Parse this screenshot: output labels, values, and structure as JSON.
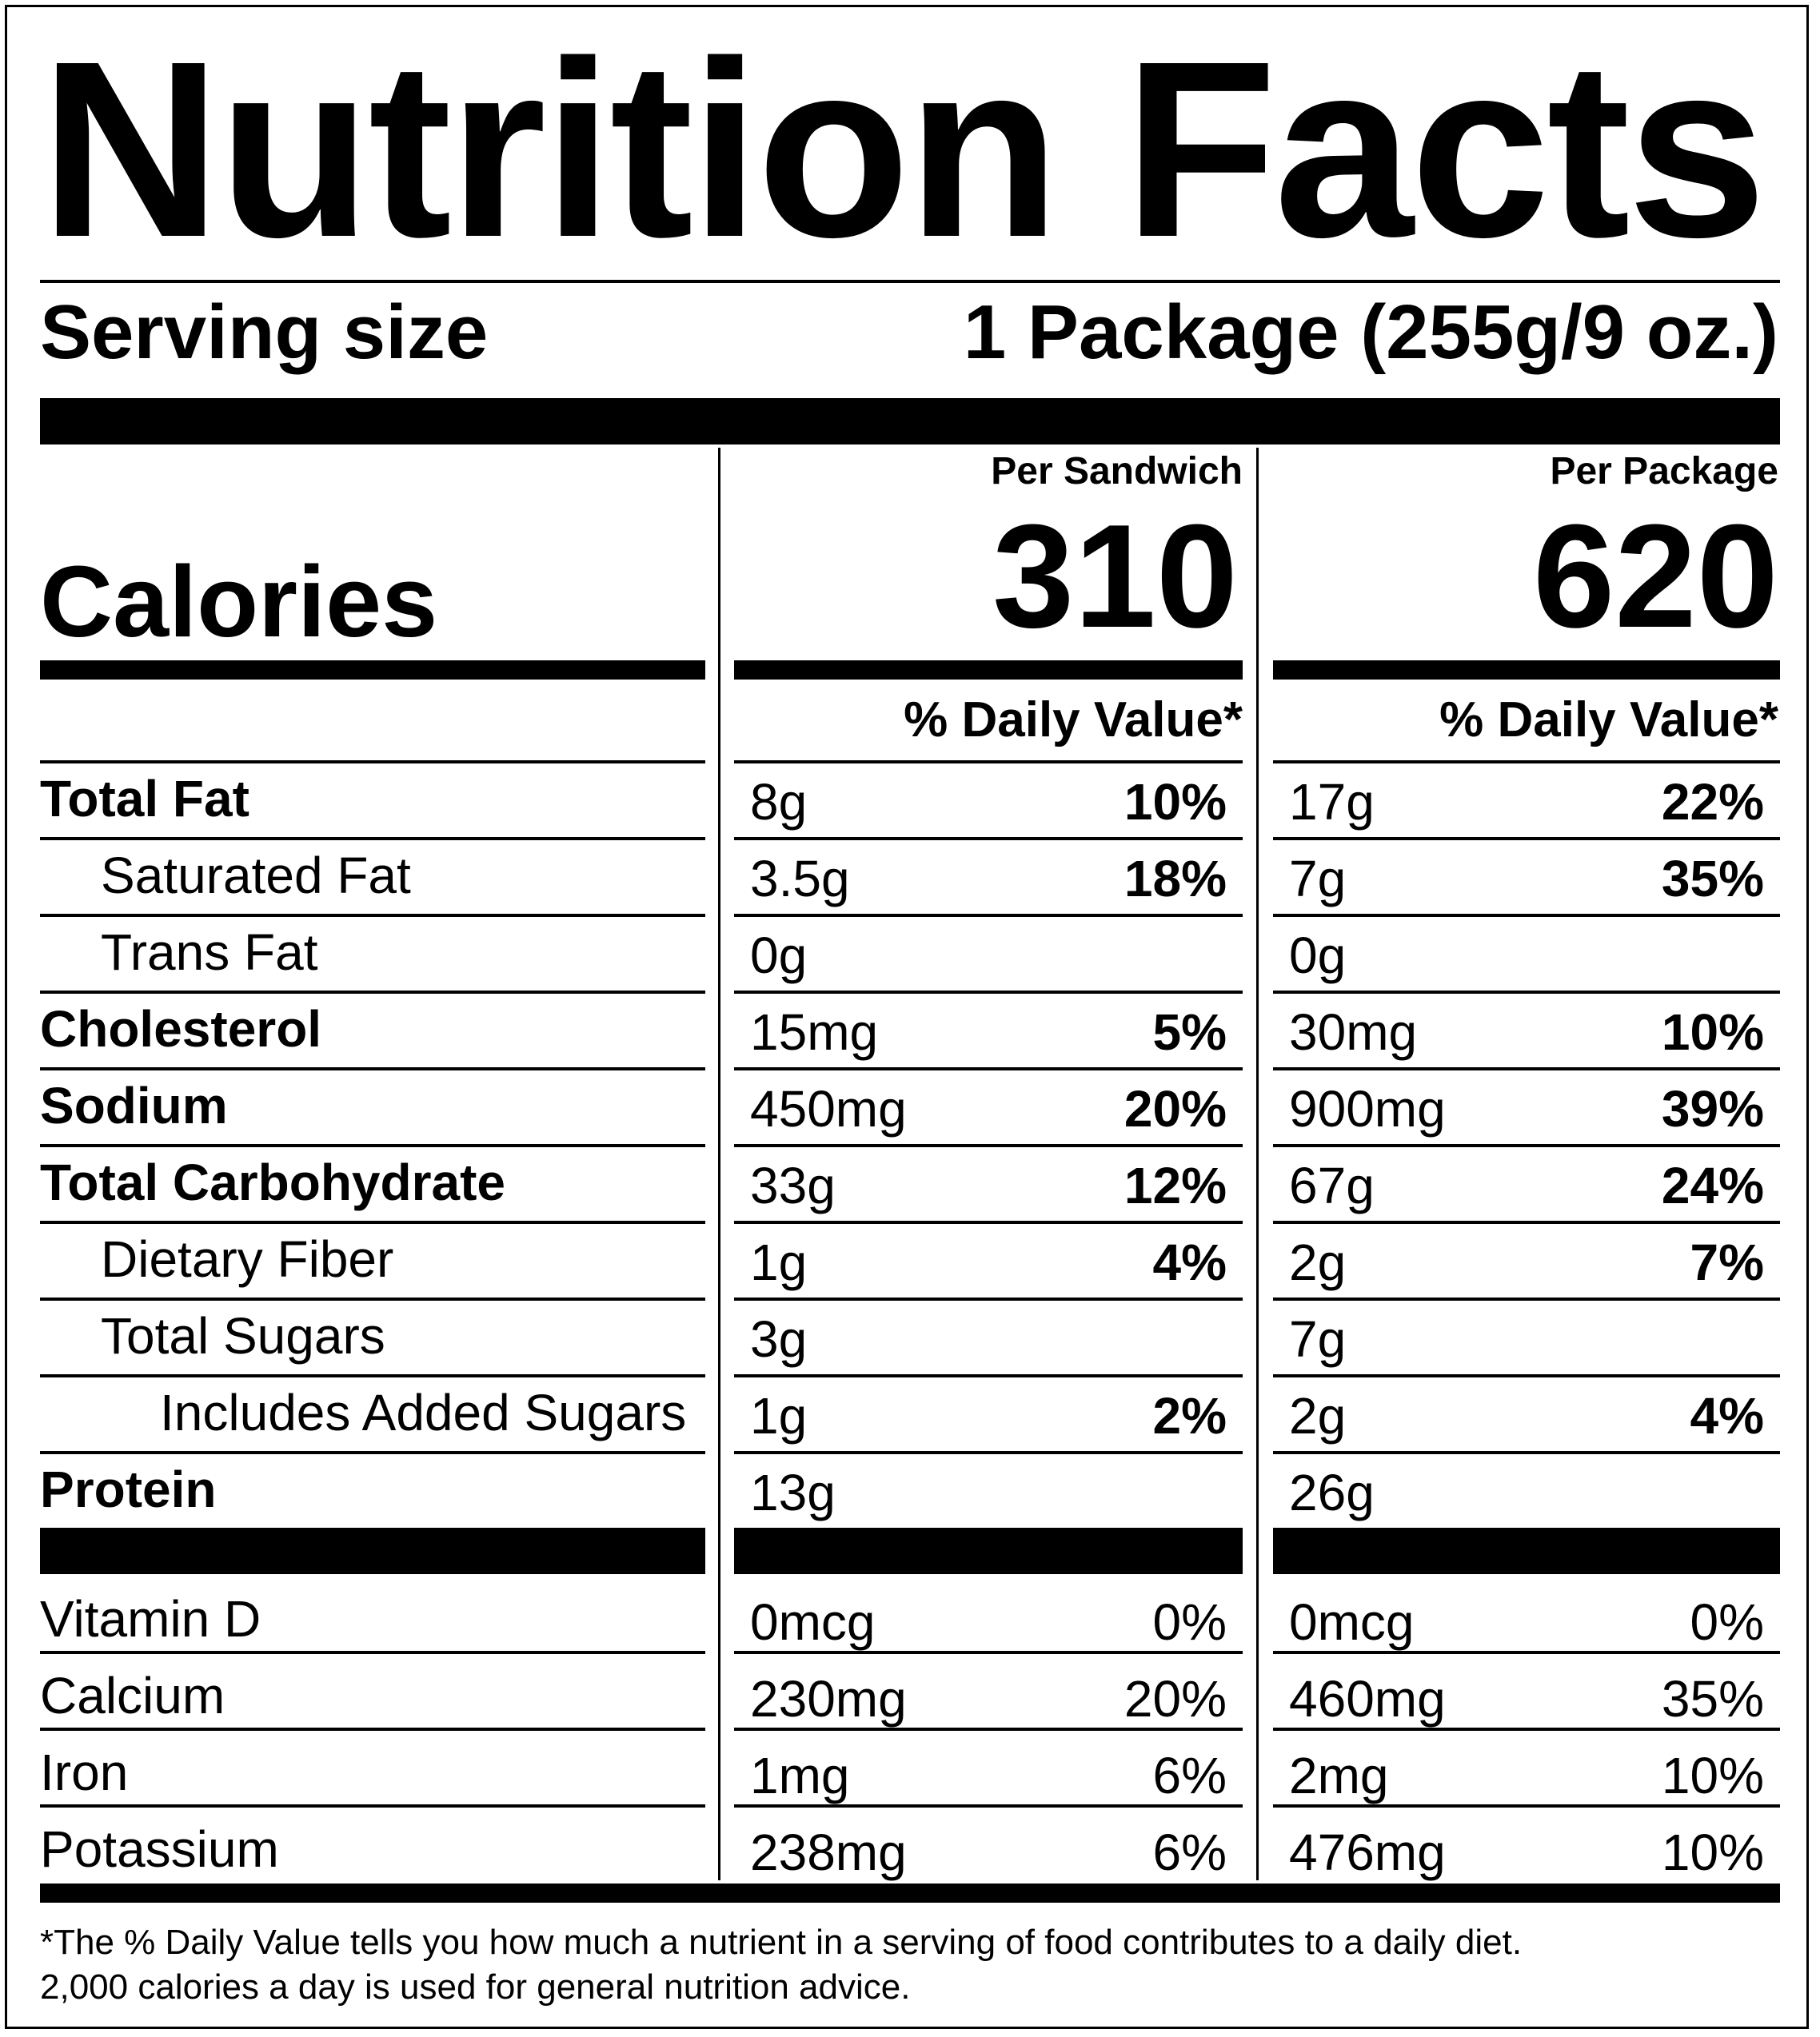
{
  "title": "Nutrition Facts",
  "serving": {
    "label": "Serving size",
    "value": "1 Package (255g/9 oz.)"
  },
  "calories": {
    "label": "Calories",
    "columns": [
      {
        "heading": "Per Sandwich",
        "value": "310",
        "dv_heading": "% Daily Value*"
      },
      {
        "heading": "Per Package",
        "value": "620",
        "dv_heading": "% Daily Value*"
      }
    ]
  },
  "nutrients": [
    {
      "label": "Total Fat",
      "bold": true,
      "indent": 0,
      "sandwich": {
        "amount": "8g",
        "dv": "10%"
      },
      "package": {
        "amount": "17g",
        "dv": "22%"
      }
    },
    {
      "label": "Saturated Fat",
      "bold": false,
      "indent": 1,
      "sandwich": {
        "amount": "3.5g",
        "dv": "18%"
      },
      "package": {
        "amount": "7g",
        "dv": "35%"
      }
    },
    {
      "label": "Trans Fat",
      "bold": false,
      "indent": 1,
      "sandwich": {
        "amount": "0g",
        "dv": ""
      },
      "package": {
        "amount": "0g",
        "dv": ""
      }
    },
    {
      "label": "Cholesterol",
      "bold": true,
      "indent": 0,
      "sandwich": {
        "amount": "15mg",
        "dv": "5%"
      },
      "package": {
        "amount": "30mg",
        "dv": "10%"
      }
    },
    {
      "label": "Sodium",
      "bold": true,
      "indent": 0,
      "sandwich": {
        "amount": "450mg",
        "dv": "20%"
      },
      "package": {
        "amount": "900mg",
        "dv": "39%"
      }
    },
    {
      "label": "Total Carbohydrate",
      "bold": true,
      "indent": 0,
      "sandwich": {
        "amount": "33g",
        "dv": "12%"
      },
      "package": {
        "amount": "67g",
        "dv": "24%"
      }
    },
    {
      "label": "Dietary Fiber",
      "bold": false,
      "indent": 1,
      "sandwich": {
        "amount": "1g",
        "dv": "4%"
      },
      "package": {
        "amount": "2g",
        "dv": "7%"
      }
    },
    {
      "label": "Total Sugars",
      "bold": false,
      "indent": 1,
      "sandwich": {
        "amount": "3g",
        "dv": ""
      },
      "package": {
        "amount": "7g",
        "dv": ""
      }
    },
    {
      "label": "Includes Added Sugars",
      "bold": false,
      "indent": 2,
      "sandwich": {
        "amount": "1g",
        "dv": "2%"
      },
      "package": {
        "amount": "2g",
        "dv": "4%"
      }
    },
    {
      "label": "Protein",
      "bold": true,
      "indent": 0,
      "sandwich": {
        "amount": "13g",
        "dv": ""
      },
      "package": {
        "amount": "26g",
        "dv": ""
      }
    }
  ],
  "vitamins": [
    {
      "label": "Vitamin D",
      "sandwich": {
        "amount": "0mcg",
        "dv": "0%"
      },
      "package": {
        "amount": "0mcg",
        "dv": "0%"
      }
    },
    {
      "label": "Calcium",
      "sandwich": {
        "amount": "230mg",
        "dv": "20%"
      },
      "package": {
        "amount": "460mg",
        "dv": "35%"
      }
    },
    {
      "label": "Iron",
      "sandwich": {
        "amount": "1mg",
        "dv": "6%"
      },
      "package": {
        "amount": "2mg",
        "dv": "10%"
      }
    },
    {
      "label": "Potassium",
      "sandwich": {
        "amount": "238mg",
        "dv": "6%"
      },
      "package": {
        "amount": "476mg",
        "dv": "10%"
      }
    }
  ],
  "footnote": {
    "line1": "*The % Daily Value tells you how much a nutrient in a serving of food contributes to a daily diet.",
    "line2": "2,000 calories a day is used for general nutrition advice."
  }
}
